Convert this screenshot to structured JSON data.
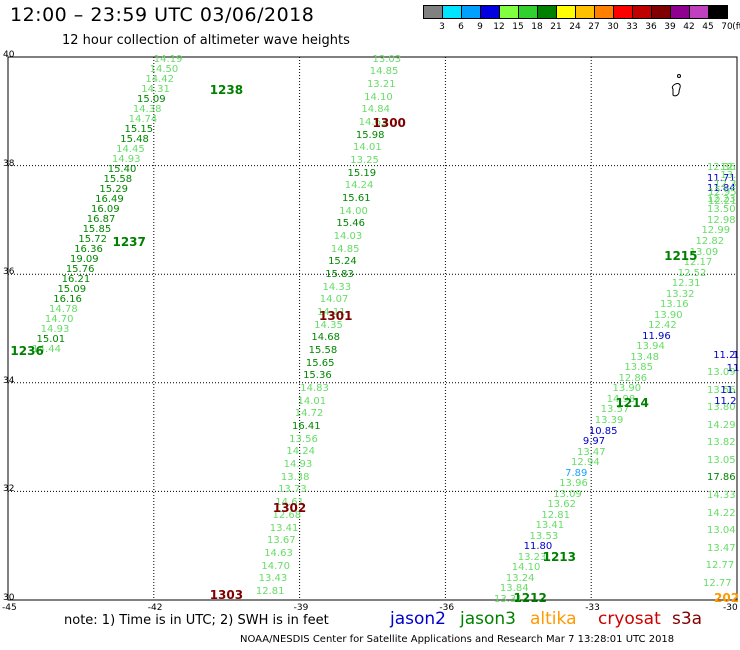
{
  "title": "12:00 – 23:59 UTC 03/06/2018",
  "subtitle": "12 hour collection of altimeter wave heights",
  "colorbar": {
    "labels": [
      "3",
      "6",
      "9",
      "12",
      "15",
      "18",
      "21",
      "24",
      "27",
      "30",
      "33",
      "36",
      "39",
      "42",
      "45",
      "70",
      "(ft)"
    ],
    "colors": [
      "#808080",
      "#00e5ff",
      "#00a0ff",
      "#0000e0",
      "#80ff40",
      "#30d030",
      "#008000",
      "#ffff00",
      "#ffc000",
      "#ff8000",
      "#ff0000",
      "#c00000",
      "#800000",
      "#900090",
      "#c040c0",
      "#000000"
    ]
  },
  "map": {
    "lon_range": [
      -45,
      -30
    ],
    "lat_range": [
      30,
      40
    ],
    "lat_labels": [
      "40",
      "38",
      "36",
      "34",
      "32",
      "30"
    ],
    "lon_labels": [
      "-45",
      "-42",
      "-39",
      "-36",
      "-33",
      "-30"
    ],
    "grid": "dotted"
  },
  "passes": [
    {
      "id": "p1238",
      "label": "1238",
      "color": "#008000",
      "anchor": {
        "lon": -40.85,
        "lat": 39.35
      }
    },
    {
      "id": "p1237",
      "label": "1237",
      "color": "#008000",
      "anchor": {
        "lon": -42.85,
        "lat": 36.55
      }
    },
    {
      "id": "p1236",
      "label": "1236",
      "color": "#008000",
      "anchor": {
        "lon": -44.95,
        "lat": 34.55
      }
    },
    {
      "id": "p1300",
      "label": "1300",
      "color": "#800000",
      "anchor": {
        "lon": -37.5,
        "lat": 38.75
      }
    },
    {
      "id": "p1301",
      "label": "1301",
      "color": "#800000",
      "anchor": {
        "lon": -38.6,
        "lat": 35.2
      }
    },
    {
      "id": "p1302",
      "label": "1302",
      "color": "#800000",
      "anchor": {
        "lon": -39.55,
        "lat": 31.65
      }
    },
    {
      "id": "p1303",
      "label": "1303",
      "color": "#800000",
      "anchor": {
        "lon": -40.85,
        "lat": 30.05
      }
    },
    {
      "id": "p1215",
      "label": "1215",
      "color": "#008000",
      "anchor": {
        "lon": -31.5,
        "lat": 36.3
      }
    },
    {
      "id": "p1214",
      "label": "1214",
      "color": "#008000",
      "anchor": {
        "lon": -32.5,
        "lat": 33.6
      }
    },
    {
      "id": "p1213",
      "label": "1213",
      "color": "#008000",
      "anchor": {
        "lon": -34.0,
        "lat": 30.75
      }
    },
    {
      "id": "p1212",
      "label": "1212",
      "color": "#008000",
      "anchor": {
        "lon": -34.6,
        "lat": 30.0
      }
    },
    {
      "id": "p202",
      "label": "202",
      "color": "#ff9900",
      "anchor": {
        "lon": -30.45,
        "lat": 30.0
      }
    }
  ],
  "tracks": [
    {
      "id": "t1238",
      "start": {
        "lon": -42.0,
        "lat": 39.95
      },
      "end": {
        "lon": -44.5,
        "lat": 34.6
      },
      "values": [
        "14.19",
        "14.50",
        "14.42",
        "14.31",
        "15.09",
        "14.38",
        "14.74",
        "15.15",
        "15.48",
        "14.45",
        "14.93",
        "15.40",
        "15.58",
        "15.29",
        "16.49",
        "16.09",
        "16.87",
        "15.85",
        "15.72",
        "16.36",
        "19.09",
        "15.76",
        "16.21",
        "15.09",
        "16.16",
        "14.78",
        "14.70",
        "14.93",
        "15.01",
        "14.44"
      ],
      "colors": [
        "g",
        "g",
        "g",
        "g",
        "d",
        "g",
        "g",
        "d",
        "d",
        "g",
        "g",
        "d",
        "d",
        "d",
        "d",
        "d",
        "d",
        "d",
        "d",
        "d",
        "d",
        "d",
        "d",
        "d",
        "d",
        "g",
        "g",
        "g",
        "d",
        "g"
      ]
    },
    {
      "id": "t1300",
      "start": {
        "lon": -37.5,
        "lat": 39.95
      },
      "end": {
        "lon": -39.9,
        "lat": 30.15
      },
      "values": [
        "13.03",
        "14.85",
        "13.21",
        "14.10",
        "14.84",
        "14.63",
        "15.98",
        "14.01",
        "13.25",
        "15.19",
        "14.24",
        "15.61",
        "14.00",
        "15.46",
        "14.03",
        "14.85",
        "15.24",
        "15.83",
        "14.33",
        "14.07",
        "14.11",
        "14.35",
        "14.68",
        "15.58",
        "15.65",
        "15.36",
        "14.83",
        "14.01",
        "14.72",
        "16.41",
        "13.56",
        "14.24",
        "14.93",
        "13.38",
        "13.73",
        "14.61",
        "12.68",
        "13.41",
        "13.67",
        "14.63",
        "14.70",
        "13.43",
        "12.81"
      ],
      "colors": [
        "g",
        "g",
        "g",
        "g",
        "g",
        "g",
        "d",
        "g",
        "g",
        "d",
        "g",
        "d",
        "g",
        "d",
        "g",
        "g",
        "d",
        "d",
        "g",
        "g",
        "g",
        "g",
        "d",
        "d",
        "d",
        "d",
        "g",
        "g",
        "g",
        "d",
        "g",
        "g",
        "g",
        "g",
        "g",
        "g",
        "g",
        "g",
        "g",
        "g",
        "g",
        "g",
        "g"
      ]
    },
    {
      "id": "t1215",
      "start": {
        "lon": -30.0,
        "lat": 37.95
      },
      "end": {
        "lon": -35.0,
        "lat": 30.0
      },
      "values": [
        "12.36",
        "11.71",
        "11.84",
        "12.23",
        "13.50",
        "12.98",
        "12.99",
        "12.82",
        "13.09",
        "12.17",
        "12.52",
        "12.31",
        "13.32",
        "13.16",
        "13.90",
        "12.42",
        "11.96",
        "13.94",
        "13.48",
        "13.85",
        "12.86",
        "13.90",
        "14.98",
        "13.57",
        "13.39",
        "10.85",
        "9.97",
        "13.47",
        "12.94",
        "7.89",
        "13.96",
        "13.09",
        "13.62",
        "12.81",
        "13.41",
        "13.53",
        "11.80",
        "13.23",
        "14.10",
        "13.24",
        "13.84",
        "13.31"
      ],
      "colors": [
        "g",
        "b",
        "b",
        "g",
        "g",
        "g",
        "g",
        "g",
        "g",
        "g",
        "g",
        "g",
        "g",
        "g",
        "g",
        "g",
        "b",
        "g",
        "g",
        "g",
        "g",
        "g",
        "g",
        "g",
        "g",
        "b",
        "b",
        "g",
        "g",
        "c",
        "g",
        "g",
        "g",
        "g",
        "g",
        "g",
        "b",
        "g",
        "g",
        "g",
        "g",
        "g"
      ]
    },
    {
      "id": "t1216",
      "start": {
        "lon": -30.0,
        "lat": 34.5
      },
      "end": {
        "lon": -30.7,
        "lat": 30.3
      },
      "values": [
        "11.2",
        "13.09",
        "13.56",
        "13.80",
        "14.29",
        "13.82",
        "13.05",
        "17.86",
        "14.33",
        "14.22",
        "13.04",
        "13.47",
        "12.77",
        "12.77"
      ],
      "colors": [
        "b",
        "g",
        "g",
        "g",
        "g",
        "g",
        "g",
        "d",
        "g",
        "g",
        "g",
        "g",
        "g",
        "g"
      ]
    }
  ],
  "edge_values": [
    {
      "text": "12.",
      "lon": -30.15,
      "lat": 37.95,
      "color": "g"
    },
    {
      "text": "13.",
      "lon": -30.15,
      "lat": 37.8,
      "color": "g"
    },
    {
      "text": "12.3",
      "lon": -30.25,
      "lat": 37.65,
      "color": "g"
    },
    {
      "text": "12.95",
      "lon": -30.4,
      "lat": 37.5,
      "color": "g"
    },
    {
      "text": "12.21",
      "lon": -30.55,
      "lat": 37.33,
      "color": "g"
    },
    {
      "text": "1",
      "lon": -30.05,
      "lat": 34.5,
      "color": "b"
    },
    {
      "text": "11",
      "lon": -30.1,
      "lat": 34.25,
      "color": "b"
    },
    {
      "text": "11.",
      "lon": -30.15,
      "lat": 33.85,
      "color": "b"
    },
    {
      "text": "11.2",
      "lon": -30.25,
      "lat": 33.65,
      "color": "b"
    }
  ],
  "footer": {
    "note": "note: 1) Time is in UTC; 2) SWH is in feet",
    "satellites": [
      {
        "name": "jason2",
        "color": "#0000cc"
      },
      {
        "name": "jason3",
        "color": "#008000"
      },
      {
        "name": "altika",
        "color": "#ff9900"
      },
      {
        "name": "cryosat",
        "color": "#cc0000"
      },
      {
        "name": "s3a",
        "color": "#800000"
      }
    ],
    "credit": "NOAA/NESDIS Center for Satellite Applications and Research   Mar  7 13:28:01 UTC 2018"
  }
}
